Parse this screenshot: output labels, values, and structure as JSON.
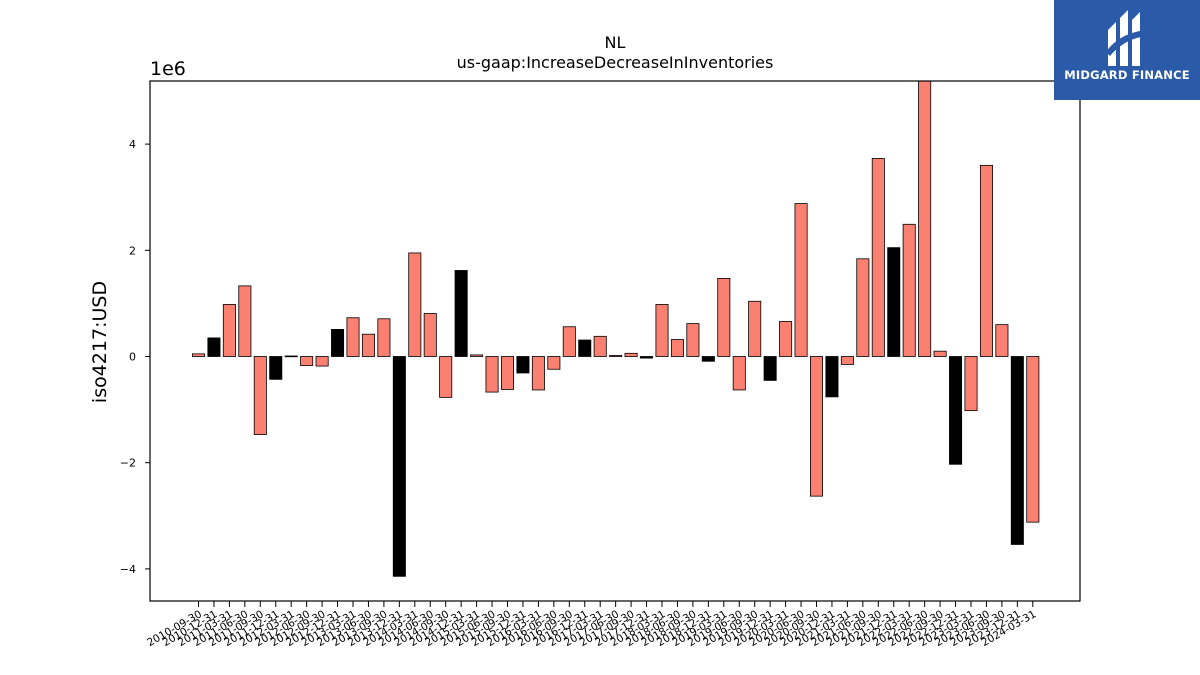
{
  "chart_data": {
    "type": "bar",
    "title": "NL",
    "subtitle": "us-gaap:IncreaseDecreaseInInventories",
    "ylabel": "iso4217:USD",
    "xlabel": "",
    "offset_text": "1e6",
    "ylim": [
      -4.6,
      5.2
    ],
    "yticks": [
      -4,
      -2,
      0,
      2,
      4
    ],
    "ytick_labels": [
      "−4",
      "−2",
      "0",
      "2",
      "4"
    ],
    "grid": false,
    "colors": {
      "positive_default": "#fa8072",
      "highlight": "#000000",
      "edge": "#000000"
    },
    "categories": [
      "2010-09-30",
      "2010-12-31",
      "2011-03-31",
      "2011-06-30",
      "2011-09-30",
      "2011-12-31",
      "2012-03-31",
      "2012-06-30",
      "2012-09-30",
      "2012-12-31",
      "2013-03-31",
      "2013-06-30",
      "2013-09-30",
      "2013-12-31",
      "2014-03-31",
      "2014-06-30",
      "2014-09-30",
      "2014-12-31",
      "2015-03-31",
      "2015-06-30",
      "2015-09-30",
      "2015-12-31",
      "2016-03-31",
      "2016-06-30",
      "2016-09-30",
      "2016-12-31",
      "2017-03-31",
      "2017-06-30",
      "2017-09-30",
      "2017-12-31",
      "2018-03-31",
      "2018-06-30",
      "2018-09-30",
      "2018-12-31",
      "2019-03-31",
      "2019-06-30",
      "2019-09-30",
      "2019-12-31",
      "2020-03-31",
      "2020-06-30",
      "2020-09-30",
      "2020-12-31",
      "2021-03-31",
      "2021-06-30",
      "2021-09-30",
      "2021-12-31",
      "2022-03-31",
      "2022-06-30",
      "2022-09-30",
      "2022-12-31",
      "2023-03-31",
      "2023-06-30",
      "2023-09-30",
      "2023-12-31",
      "2024-03-31"
    ],
    "values": [
      0.05,
      0.35,
      0.98,
      1.33,
      -1.47,
      -0.43,
      0.01,
      -0.17,
      -0.18,
      0.51,
      0.73,
      0.42,
      0.71,
      -4.14,
      1.95,
      0.81,
      -0.77,
      1.62,
      0.03,
      -0.67,
      -0.62,
      -0.31,
      -0.63,
      -0.24,
      0.56,
      0.31,
      0.38,
      0.02,
      0.06,
      -0.03,
      0.98,
      0.32,
      0.62,
      -0.09,
      1.47,
      -0.63,
      1.04,
      -0.45,
      0.66,
      2.88,
      -2.63,
      -0.76,
      -0.15,
      1.84,
      3.73,
      2.05,
      2.49,
      5.4,
      0.1,
      -2.03,
      -1.02,
      3.6,
      0.6,
      -3.54,
      -3.12
    ],
    "highlight": [
      false,
      true,
      false,
      false,
      false,
      true,
      false,
      false,
      false,
      true,
      false,
      false,
      false,
      true,
      false,
      false,
      false,
      true,
      false,
      false,
      false,
      true,
      false,
      false,
      false,
      true,
      false,
      false,
      false,
      true,
      false,
      false,
      false,
      true,
      false,
      false,
      false,
      true,
      false,
      false,
      false,
      true,
      false,
      false,
      false,
      true,
      false,
      false,
      false,
      true,
      false,
      false,
      false,
      true,
      false
    ]
  },
  "logo": {
    "text": "MIDGARD FINANCE",
    "icon": "midgard-logo-icon"
  }
}
